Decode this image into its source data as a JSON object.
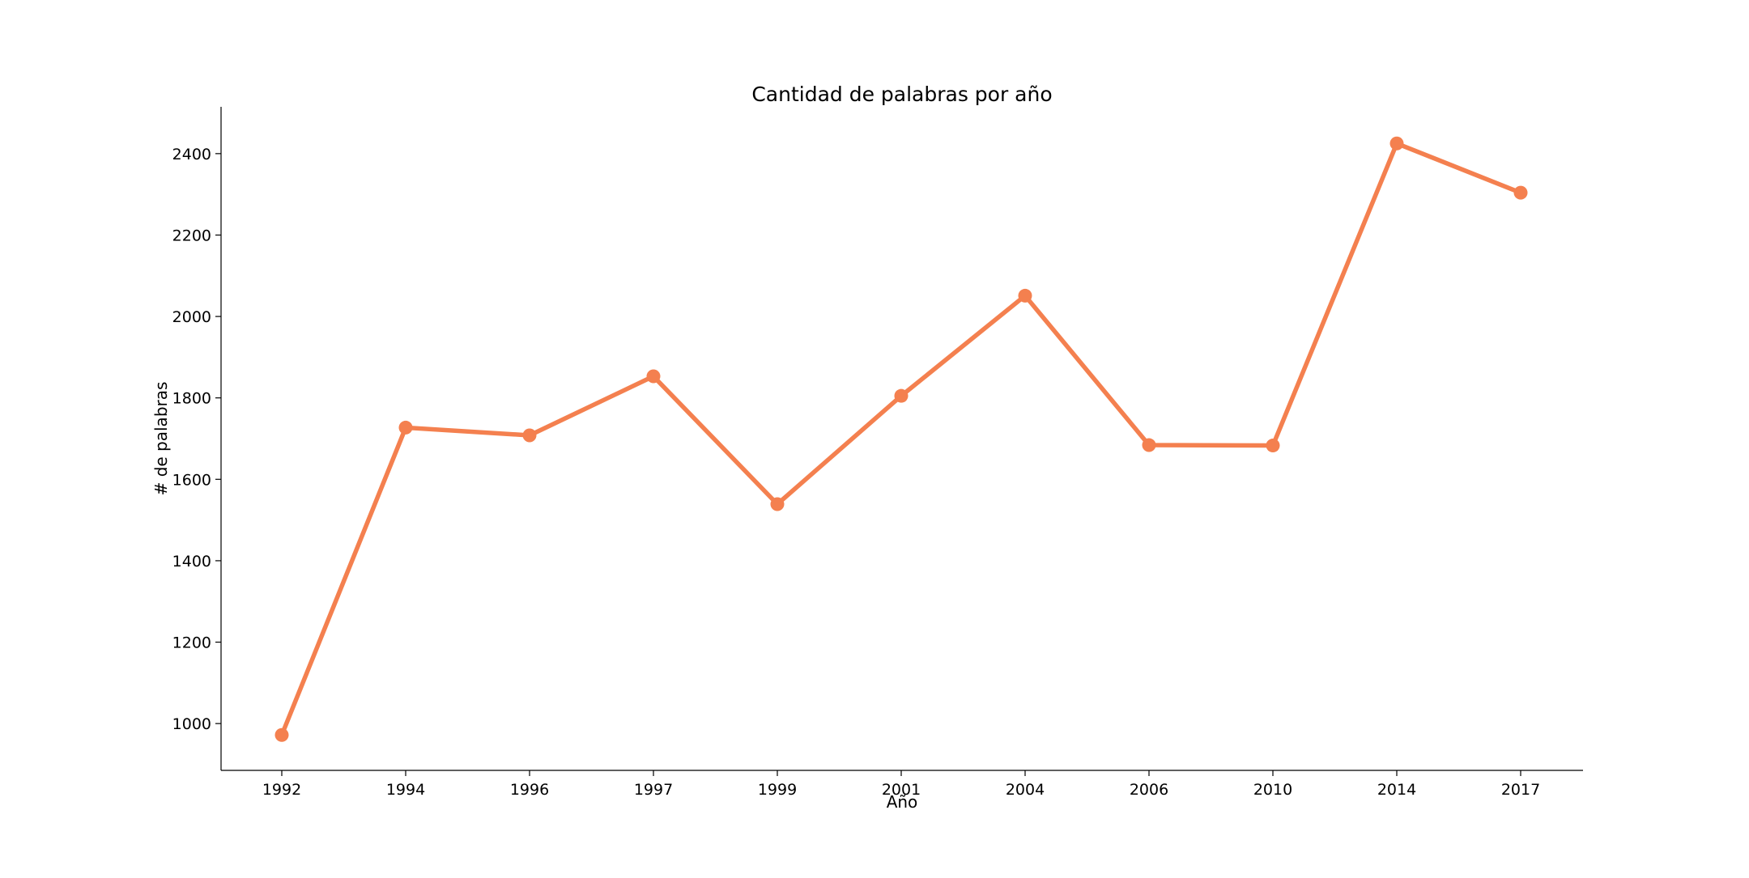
{
  "chart_data": {
    "type": "line",
    "title": "Cantidad de palabras por año",
    "xlabel": "Año",
    "ylabel": "# de palabras",
    "categories": [
      "1992",
      "1994",
      "1996",
      "1997",
      "1999",
      "2001",
      "2004",
      "2006",
      "2010",
      "2014",
      "2017"
    ],
    "series": [
      {
        "values": [
          972,
          1727,
          1708,
          1853,
          1539,
          1805,
          2051,
          1684,
          1683,
          2425,
          2304
        ],
        "color": "#f4804f",
        "marker": "circle"
      }
    ],
    "yticks": [
      1000,
      1200,
      1400,
      1600,
      1800,
      2000,
      2200,
      2400
    ],
    "ylim": [
      885,
      2515
    ],
    "grid": false,
    "spines": [
      "left",
      "bottom"
    ]
  }
}
